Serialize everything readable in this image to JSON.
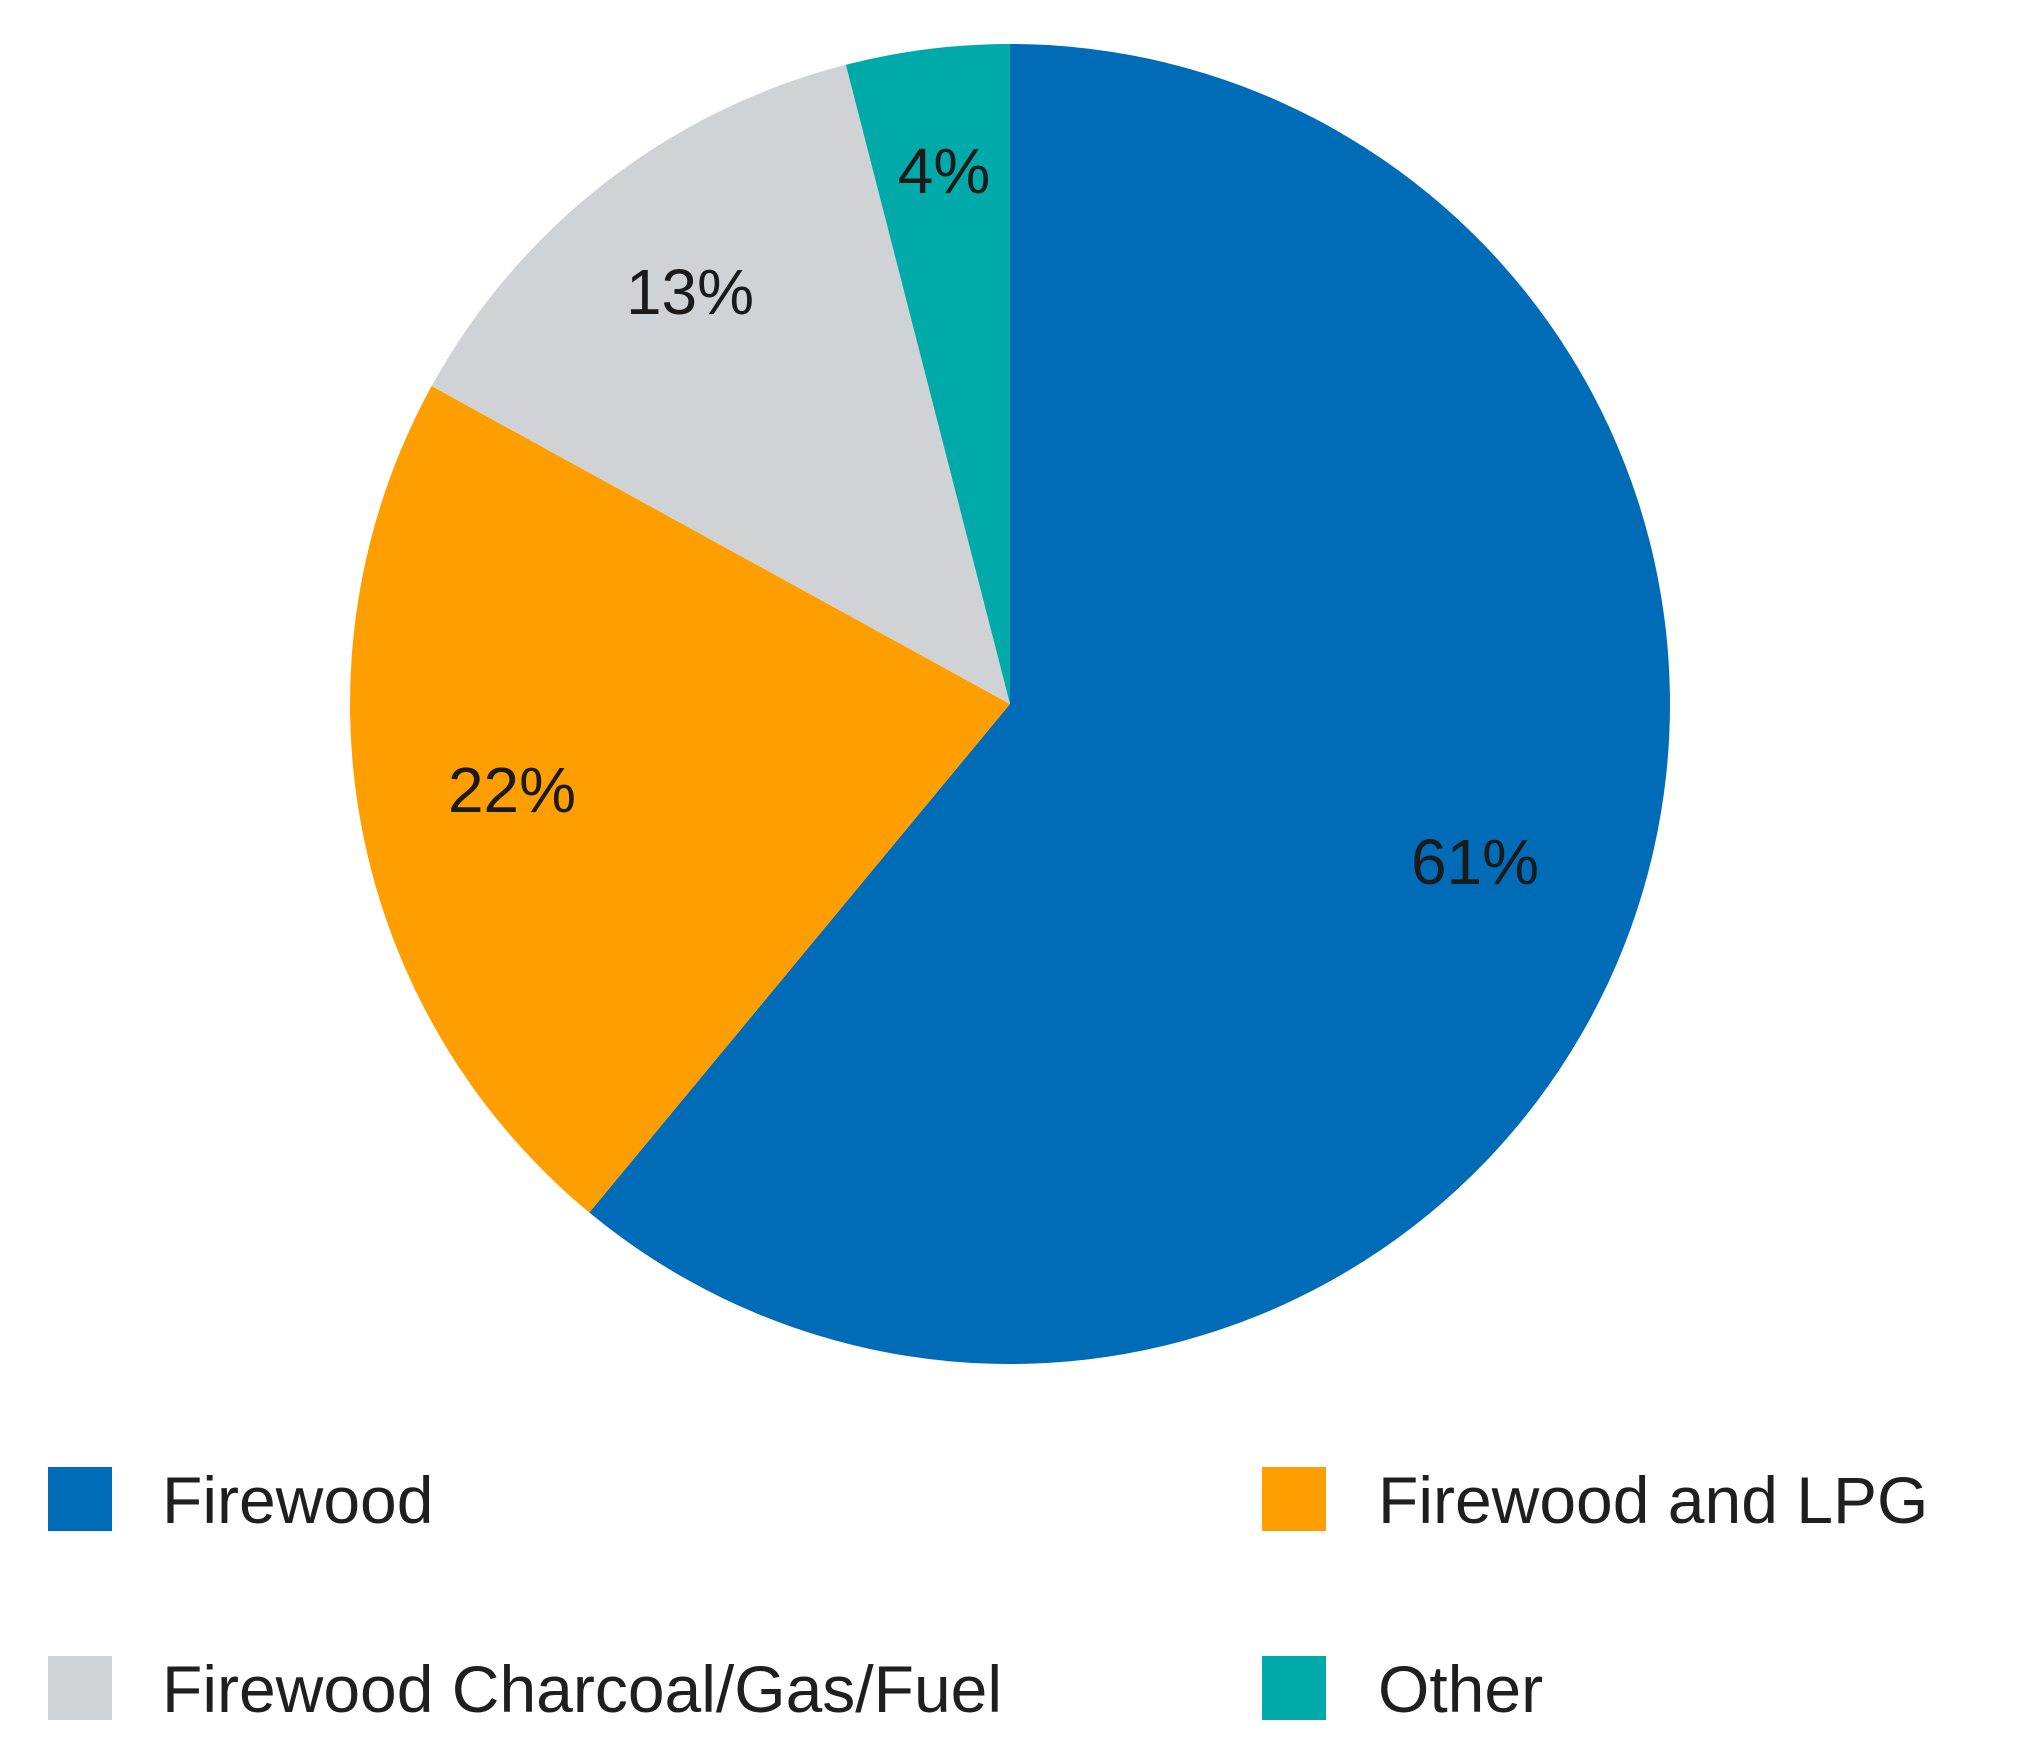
{
  "chart_data": {
    "type": "pie",
    "title": "",
    "start": "top",
    "direction": "clockwise",
    "legend_position": "bottom",
    "slices": [
      {
        "name": "Firewood",
        "value": 61,
        "label": "61%",
        "color": "#006BB6"
      },
      {
        "name": "Firewood and LPG",
        "value": 22,
        "label": "22%",
        "color": "#FF9E00"
      },
      {
        "name": "Firewood Charcoal/Gas/Fuel",
        "value": 13,
        "label": "13%",
        "color": "#D0D3D5"
      },
      {
        "name": "Other",
        "value": 4,
        "label": "4%",
        "color": "#00AAA8"
      }
    ],
    "legend_order": [
      "Firewood",
      "Firewood and LPG",
      "Firewood Charcoal/Gas/Fuel",
      "Other"
    ]
  }
}
